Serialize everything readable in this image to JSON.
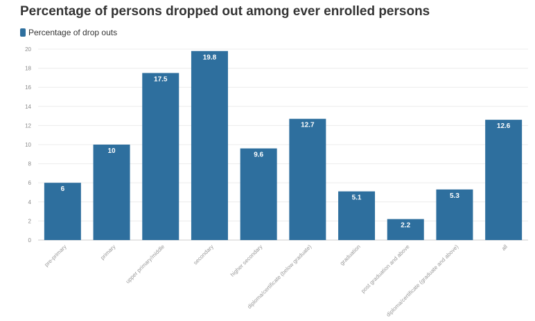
{
  "chart_data": {
    "type": "bar",
    "title": "Percentage of persons dropped out among ever enrolled persons",
    "legend": {
      "label": "Percentage of drop outs",
      "placement": "top-left"
    },
    "series_color": "#2e6f9e",
    "grid": true,
    "ylim": [
      0,
      20
    ],
    "yticks": [
      0,
      2,
      4,
      6,
      8,
      10,
      12,
      14,
      16,
      18,
      20
    ],
    "categories": [
      "pre-primary",
      "primary",
      "upper primary/middle",
      "secondary",
      "higher secondary",
      "diploma/certificate (below graduate)",
      "graduation",
      "post graduation and above",
      "diploma/certificate (graduate and above)",
      "all"
    ],
    "values": [
      6,
      10,
      17.5,
      19.8,
      9.6,
      12.7,
      5.1,
      2.2,
      5.3,
      12.6
    ],
    "value_labels": [
      "6",
      "10",
      "17.5",
      "19.8",
      "9.6",
      "12.7",
      "5.1",
      "2.2",
      "5.3",
      "12.6"
    ]
  }
}
